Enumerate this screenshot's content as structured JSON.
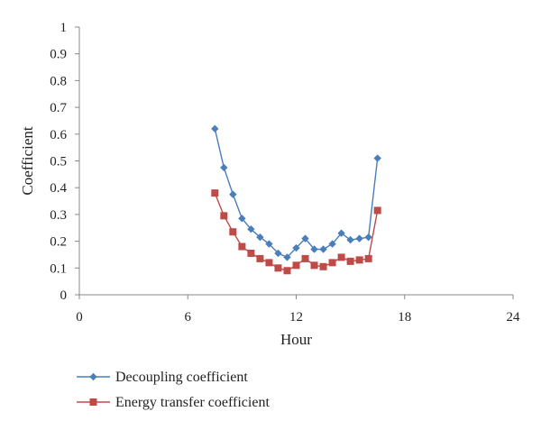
{
  "chart_data": {
    "type": "line",
    "title": "",
    "xlabel": "Hour",
    "ylabel": "Coefficient",
    "xlim": [
      0,
      24
    ],
    "ylim": [
      0,
      1
    ],
    "xticks": [
      0,
      6,
      12,
      18,
      24
    ],
    "yticks": [
      0,
      0.1,
      0.2,
      0.3,
      0.4,
      0.5,
      0.6,
      0.7,
      0.8,
      0.9,
      1
    ],
    "ytick_labels": [
      "0",
      "0.1",
      "0.2",
      "0.3",
      "0.4",
      "0.5",
      "0.6",
      "0.7",
      "0.8",
      "0.9",
      "1"
    ],
    "grid": false,
    "legend_position": "bottom-left",
    "x": [
      7.5,
      8,
      8.5,
      9,
      9.5,
      10,
      10.5,
      11,
      11.5,
      12,
      12.5,
      13,
      13.5,
      14,
      14.5,
      15,
      15.5,
      16,
      16.5
    ],
    "series": [
      {
        "name": "Decoupling coefficient",
        "color": "#4a7ebb",
        "marker": "diamond",
        "values": [
          0.62,
          0.475,
          0.375,
          0.285,
          0.245,
          0.215,
          0.19,
          0.155,
          0.14,
          0.175,
          0.21,
          0.17,
          0.17,
          0.19,
          0.23,
          0.205,
          0.21,
          0.215,
          0.51
        ]
      },
      {
        "name": "Energy transfer coefficient",
        "color": "#be4b48",
        "marker": "square",
        "values": [
          0.38,
          0.295,
          0.235,
          0.18,
          0.155,
          0.135,
          0.12,
          0.1,
          0.09,
          0.11,
          0.135,
          0.11,
          0.105,
          0.12,
          0.14,
          0.125,
          0.13,
          0.135,
          0.315
        ]
      }
    ]
  }
}
